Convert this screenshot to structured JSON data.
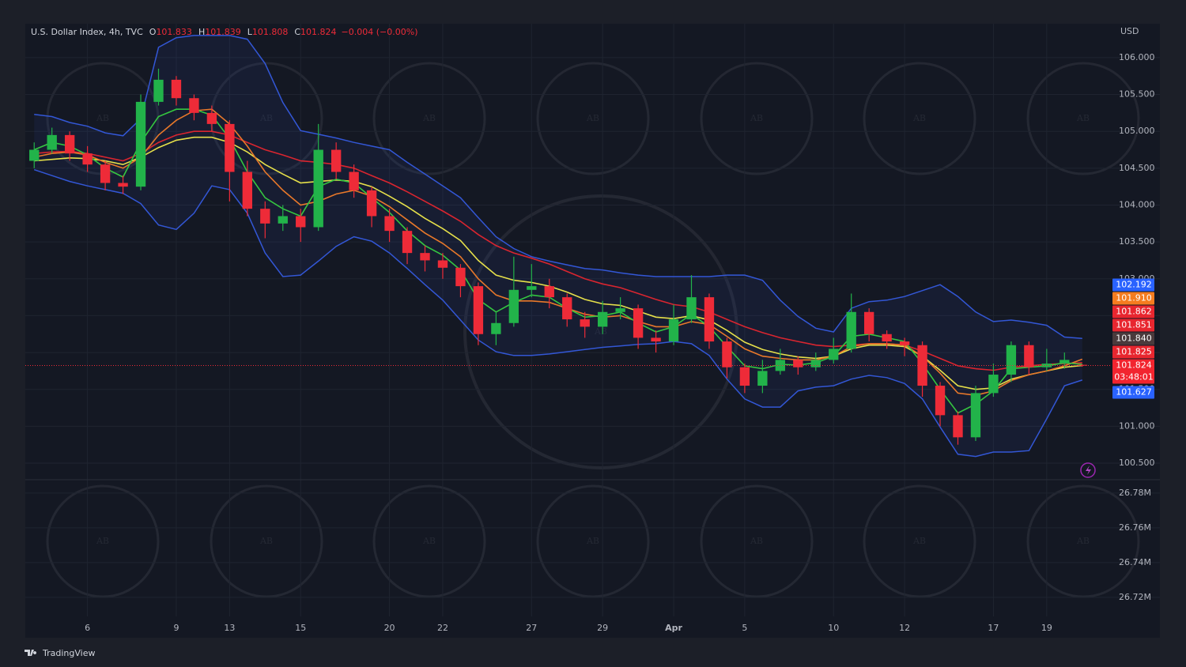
{
  "chart_data": [
    {
      "type": "candlestick",
      "title": "U.S. Dollar Index, 4h, TVC",
      "ohlc_legend": [
        {
          "key": "O",
          "value": 101.833
        },
        {
          "key": "H",
          "value": 101.839
        },
        {
          "key": "L",
          "value": 101.808
        },
        {
          "key": "C",
          "value": 101.824
        }
      ],
      "change": "−0.004 (−0.00%)",
      "y_unit": "USD",
      "categories": [
        null,
        null,
        null,
        "6",
        null,
        null,
        null,
        null,
        "9",
        null,
        null,
        "13",
        null,
        null,
        null,
        "15",
        null,
        null,
        null,
        null,
        "20",
        null,
        null,
        "22",
        null,
        null,
        null,
        null,
        "27",
        null,
        null,
        null,
        "29",
        null,
        null,
        null,
        "Apr",
        null,
        null,
        null,
        "5",
        null,
        null,
        null,
        null,
        "10",
        null,
        null,
        null,
        "12",
        null,
        null,
        null,
        null,
        "17",
        null,
        null,
        "19",
        null,
        null
      ],
      "open": [
        104.6,
        104.75,
        104.95,
        104.7,
        104.55,
        104.3,
        104.25,
        105.4,
        105.7,
        105.45,
        105.25,
        105.1,
        104.45,
        103.95,
        103.75,
        103.85,
        103.7,
        104.75,
        104.45,
        104.2,
        103.85,
        103.65,
        103.35,
        103.25,
        103.15,
        102.9,
        102.25,
        102.4,
        102.85,
        102.9,
        102.75,
        102.45,
        102.35,
        102.55,
        102.6,
        102.2,
        102.15,
        102.45,
        102.75,
        102.15,
        101.8,
        101.55,
        101.75,
        101.9,
        101.8,
        101.9,
        102.05,
        102.55,
        102.25,
        102.15,
        102.1,
        101.55,
        101.15,
        100.85,
        101.45,
        101.7,
        102.1,
        101.8,
        101.85,
        101.833
      ],
      "high": [
        104.85,
        105.05,
        105.0,
        104.8,
        104.6,
        104.4,
        105.5,
        105.85,
        105.75,
        105.5,
        105.35,
        105.15,
        104.6,
        104.05,
        104.0,
        103.95,
        105.1,
        104.85,
        104.55,
        104.25,
        103.95,
        103.7,
        103.45,
        103.35,
        103.2,
        102.95,
        102.55,
        103.3,
        103.2,
        103.0,
        102.8,
        102.55,
        102.7,
        102.75,
        102.65,
        102.3,
        102.65,
        103.05,
        102.8,
        102.2,
        101.85,
        101.9,
        102.05,
        101.95,
        102.0,
        102.2,
        102.8,
        102.6,
        102.3,
        102.2,
        102.15,
        101.6,
        101.2,
        101.55,
        101.85,
        102.15,
        102.15,
        102.05,
        102.0,
        101.839
      ],
      "low": [
        104.5,
        104.7,
        104.6,
        104.45,
        104.2,
        104.15,
        104.2,
        105.35,
        105.35,
        105.15,
        105.0,
        104.05,
        103.85,
        103.55,
        103.65,
        103.5,
        103.65,
        104.35,
        104.1,
        103.7,
        103.5,
        103.2,
        103.1,
        103.0,
        102.75,
        102.1,
        102.1,
        102.35,
        102.75,
        102.6,
        102.35,
        102.2,
        102.25,
        102.45,
        102.05,
        102.0,
        102.1,
        102.4,
        102.05,
        101.65,
        101.45,
        101.45,
        101.7,
        101.7,
        101.75,
        101.85,
        102.0,
        102.15,
        102.05,
        101.95,
        101.4,
        101.0,
        100.75,
        100.8,
        101.4,
        101.6,
        101.7,
        101.75,
        101.78,
        101.808
      ],
      "close": [
        104.75,
        104.95,
        104.7,
        104.55,
        104.3,
        104.25,
        105.4,
        105.7,
        105.45,
        105.25,
        105.1,
        104.45,
        103.95,
        103.75,
        103.85,
        103.7,
        104.75,
        104.45,
        104.2,
        103.85,
        103.65,
        103.35,
        103.25,
        103.15,
        102.9,
        102.25,
        102.4,
        102.85,
        102.9,
        102.75,
        102.45,
        102.35,
        102.55,
        102.6,
        102.2,
        102.15,
        102.45,
        102.75,
        102.15,
        101.8,
        101.55,
        101.75,
        101.9,
        101.8,
        101.9,
        102.05,
        102.55,
        102.25,
        102.15,
        102.1,
        101.55,
        101.15,
        100.85,
        101.45,
        101.7,
        102.1,
        101.8,
        101.85,
        101.9,
        101.824
      ],
      "up_color": "#22b34a",
      "down_color": "#ee2b38",
      "band": {
        "color": "#3357d6",
        "upper": [
          105.23,
          105.2,
          105.12,
          105.07,
          104.98,
          104.94,
          105.17,
          106.14,
          106.27,
          106.3,
          106.3,
          106.3,
          106.25,
          105.92,
          105.39,
          105.01,
          104.96,
          104.91,
          104.85,
          104.8,
          104.75,
          104.58,
          104.42,
          104.26,
          104.1,
          103.83,
          103.57,
          103.41,
          103.3,
          103.24,
          103.19,
          103.14,
          103.12,
          103.08,
          103.05,
          103.03,
          103.03,
          103.03,
          103.03,
          103.05,
          103.05,
          102.98,
          102.71,
          102.49,
          102.33,
          102.28,
          102.6,
          102.69,
          102.71,
          102.76,
          102.84,
          102.92,
          102.76,
          102.55,
          102.42,
          102.44,
          102.41,
          102.37,
          102.21,
          102.192
        ],
        "lower": [
          104.48,
          104.4,
          104.32,
          104.26,
          104.21,
          104.16,
          104.02,
          103.73,
          103.67,
          103.89,
          104.26,
          104.21,
          103.89,
          103.35,
          103.03,
          103.05,
          103.24,
          103.44,
          103.57,
          103.51,
          103.35,
          103.14,
          102.92,
          102.71,
          102.44,
          102.17,
          102.01,
          101.96,
          101.96,
          101.98,
          102.01,
          102.04,
          102.07,
          102.09,
          102.11,
          102.12,
          102.15,
          102.12,
          101.96,
          101.64,
          101.37,
          101.26,
          101.26,
          101.48,
          101.53,
          101.55,
          101.64,
          101.69,
          101.66,
          101.58,
          101.37,
          100.99,
          100.62,
          100.59,
          100.65,
          100.65,
          100.67,
          101.1,
          101.55,
          101.627
        ]
      },
      "series": [
        {
          "color": "#d9252f",
          "values": [
            104.7,
            104.72,
            104.73,
            104.7,
            104.65,
            104.6,
            104.7,
            104.85,
            104.95,
            105.0,
            105.0,
            104.95,
            104.85,
            104.75,
            104.68,
            104.6,
            104.58,
            104.55,
            104.5,
            104.4,
            104.3,
            104.18,
            104.05,
            103.92,
            103.78,
            103.6,
            103.45,
            103.35,
            103.28,
            103.2,
            103.1,
            103.0,
            102.93,
            102.88,
            102.8,
            102.72,
            102.65,
            102.62,
            102.55,
            102.45,
            102.35,
            102.27,
            102.2,
            102.15,
            102.1,
            102.08,
            102.1,
            102.12,
            102.12,
            102.1,
            102.02,
            101.92,
            101.82,
            101.78,
            101.76,
            101.8,
            101.82,
            101.84,
            101.85,
            101.862
          ]
        },
        {
          "color": "#e6e04a",
          "values": [
            104.6,
            104.62,
            104.64,
            104.63,
            104.6,
            104.55,
            104.65,
            104.78,
            104.88,
            104.92,
            104.92,
            104.85,
            104.72,
            104.55,
            104.42,
            104.3,
            104.32,
            104.34,
            104.32,
            104.25,
            104.12,
            103.98,
            103.82,
            103.68,
            103.52,
            103.25,
            103.05,
            102.98,
            102.95,
            102.9,
            102.82,
            102.72,
            102.66,
            102.64,
            102.56,
            102.48,
            102.46,
            102.5,
            102.44,
            102.3,
            102.14,
            102.04,
            101.98,
            101.94,
            101.92,
            101.95,
            102.05,
            102.1,
            102.1,
            102.08,
            101.95,
            101.76,
            101.55,
            101.5,
            101.52,
            101.64,
            101.7,
            101.75,
            101.8,
            101.825
          ]
        },
        {
          "color": "#e8782a",
          "values": [
            104.65,
            104.7,
            104.72,
            104.68,
            104.58,
            104.5,
            104.65,
            104.95,
            105.15,
            105.28,
            105.3,
            105.1,
            104.8,
            104.45,
            104.2,
            104.0,
            104.05,
            104.15,
            104.2,
            104.12,
            103.98,
            103.8,
            103.62,
            103.48,
            103.3,
            103.0,
            102.78,
            102.7,
            102.7,
            102.68,
            102.6,
            102.52,
            102.48,
            102.5,
            102.42,
            102.35,
            102.35,
            102.42,
            102.38,
            102.22,
            102.05,
            101.95,
            101.92,
            101.9,
            101.9,
            101.95,
            102.08,
            102.12,
            102.12,
            102.1,
            101.95,
            101.72,
            101.45,
            101.42,
            101.48,
            101.62,
            101.7,
            101.75,
            101.82,
            101.91
          ]
        },
        {
          "color": "#35c640",
          "values": [
            104.75,
            104.85,
            104.8,
            104.68,
            104.5,
            104.38,
            104.85,
            105.2,
            105.3,
            105.3,
            105.22,
            104.9,
            104.45,
            104.1,
            103.95,
            103.85,
            104.25,
            104.35,
            104.3,
            104.1,
            103.9,
            103.65,
            103.45,
            103.32,
            103.12,
            102.72,
            102.55,
            102.68,
            102.78,
            102.75,
            102.6,
            102.48,
            102.5,
            102.55,
            102.4,
            102.28,
            102.35,
            102.52,
            102.35,
            102.08,
            101.82,
            101.78,
            101.84,
            101.83,
            101.86,
            101.95,
            102.22,
            102.25,
            102.2,
            102.15,
            101.85,
            101.5,
            101.18,
            101.3,
            101.48,
            101.78,
            101.8,
            101.82,
            101.86,
            101.84
          ]
        }
      ],
      "price_labels": [
        {
          "value": 102.192,
          "color": "#2962ff"
        },
        {
          "value": 101.91,
          "label": "101.910",
          "color": "#f57c1f"
        },
        {
          "value": 101.862,
          "color": "#e8262f"
        },
        {
          "value": 101.851,
          "color": "#e8262f"
        },
        {
          "value": 101.84,
          "label": "101.840",
          "color": "#4a3a3c"
        },
        {
          "value": 101.825,
          "color": "#e8262f"
        },
        {
          "value": 101.824,
          "color": "#f2242f",
          "countdown": "03:48:01"
        },
        {
          "value": 101.627,
          "color": "#2962ff"
        }
      ],
      "ylim": [
        100.275,
        106.46
      ],
      "yticks": [
        {
          "value": 100.5,
          "label": "100.500"
        },
        {
          "value": 101,
          "label": "101.000"
        },
        {
          "value": 101.5,
          "label": "101.500"
        },
        {
          "value": 102,
          "label": "102.000"
        },
        {
          "value": 102.5,
          "label": "102.500"
        },
        {
          "value": 103,
          "label": "103.000"
        },
        {
          "value": 103.5,
          "label": "103.500"
        },
        {
          "value": 104,
          "label": "104.000"
        },
        {
          "value": 104.5,
          "label": "104.500"
        },
        {
          "value": 105,
          "label": "105.000"
        },
        {
          "value": 105.5,
          "label": "105.500"
        },
        {
          "value": 106,
          "label": "106.000"
        }
      ],
      "grid": true
    },
    {
      "type": "volume",
      "ylim": [
        26709000,
        26787700
      ],
      "yticks": [
        {
          "value": 26720000,
          "label": "26.72M"
        },
        {
          "value": 26740000,
          "label": "26.74M"
        },
        {
          "value": 26760000,
          "label": "26.76M"
        },
        {
          "value": 26780000,
          "label": "26.78M"
        }
      ],
      "grid": true
    }
  ],
  "watermark": "AB",
  "branding": "TradingView"
}
